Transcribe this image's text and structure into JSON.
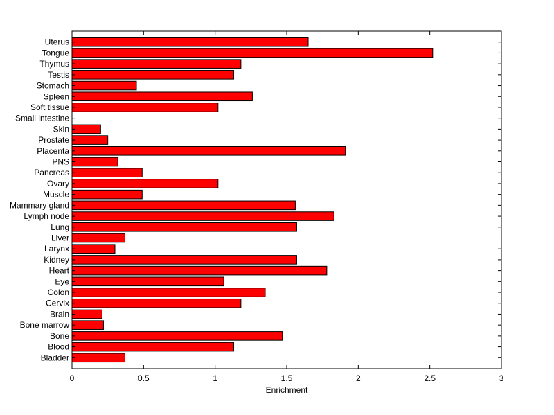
{
  "chart_data": {
    "type": "bar",
    "orientation": "horizontal",
    "xlabel": "Enrichment",
    "ylabel": "",
    "title": "",
    "xlim": [
      0,
      3
    ],
    "xticks": [
      0,
      0.5,
      1,
      1.5,
      2,
      2.5,
      3
    ],
    "xtick_labels": [
      "0",
      "0.5",
      "1",
      "1.5",
      "2",
      "2.5",
      "3"
    ],
    "grid": false,
    "bar_color": "#ff0000",
    "edge_color": "#000000",
    "categories": [
      "Bladder",
      "Blood",
      "Bone",
      "Bone marrow",
      "Brain",
      "Cervix",
      "Colon",
      "Eye",
      "Heart",
      "Kidney",
      "Larynx",
      "Liver",
      "Lung",
      "Lymph node",
      "Mammary gland",
      "Muscle",
      "Ovary",
      "Pancreas",
      "PNS",
      "Placenta",
      "Prostate",
      "Skin",
      "Small intestine",
      "Soft tissue",
      "Spleen",
      "Stomach",
      "Testis",
      "Thymus",
      "Tongue",
      "Uterus"
    ],
    "values": [
      0.37,
      1.13,
      1.47,
      0.22,
      0.21,
      1.18,
      1.35,
      1.06,
      1.78,
      1.57,
      0.3,
      0.37,
      1.57,
      1.83,
      1.56,
      0.49,
      1.02,
      0.49,
      0.32,
      1.91,
      0.25,
      0.2,
      0.0,
      1.02,
      1.26,
      0.45,
      1.13,
      1.18,
      2.52,
      1.65
    ]
  }
}
